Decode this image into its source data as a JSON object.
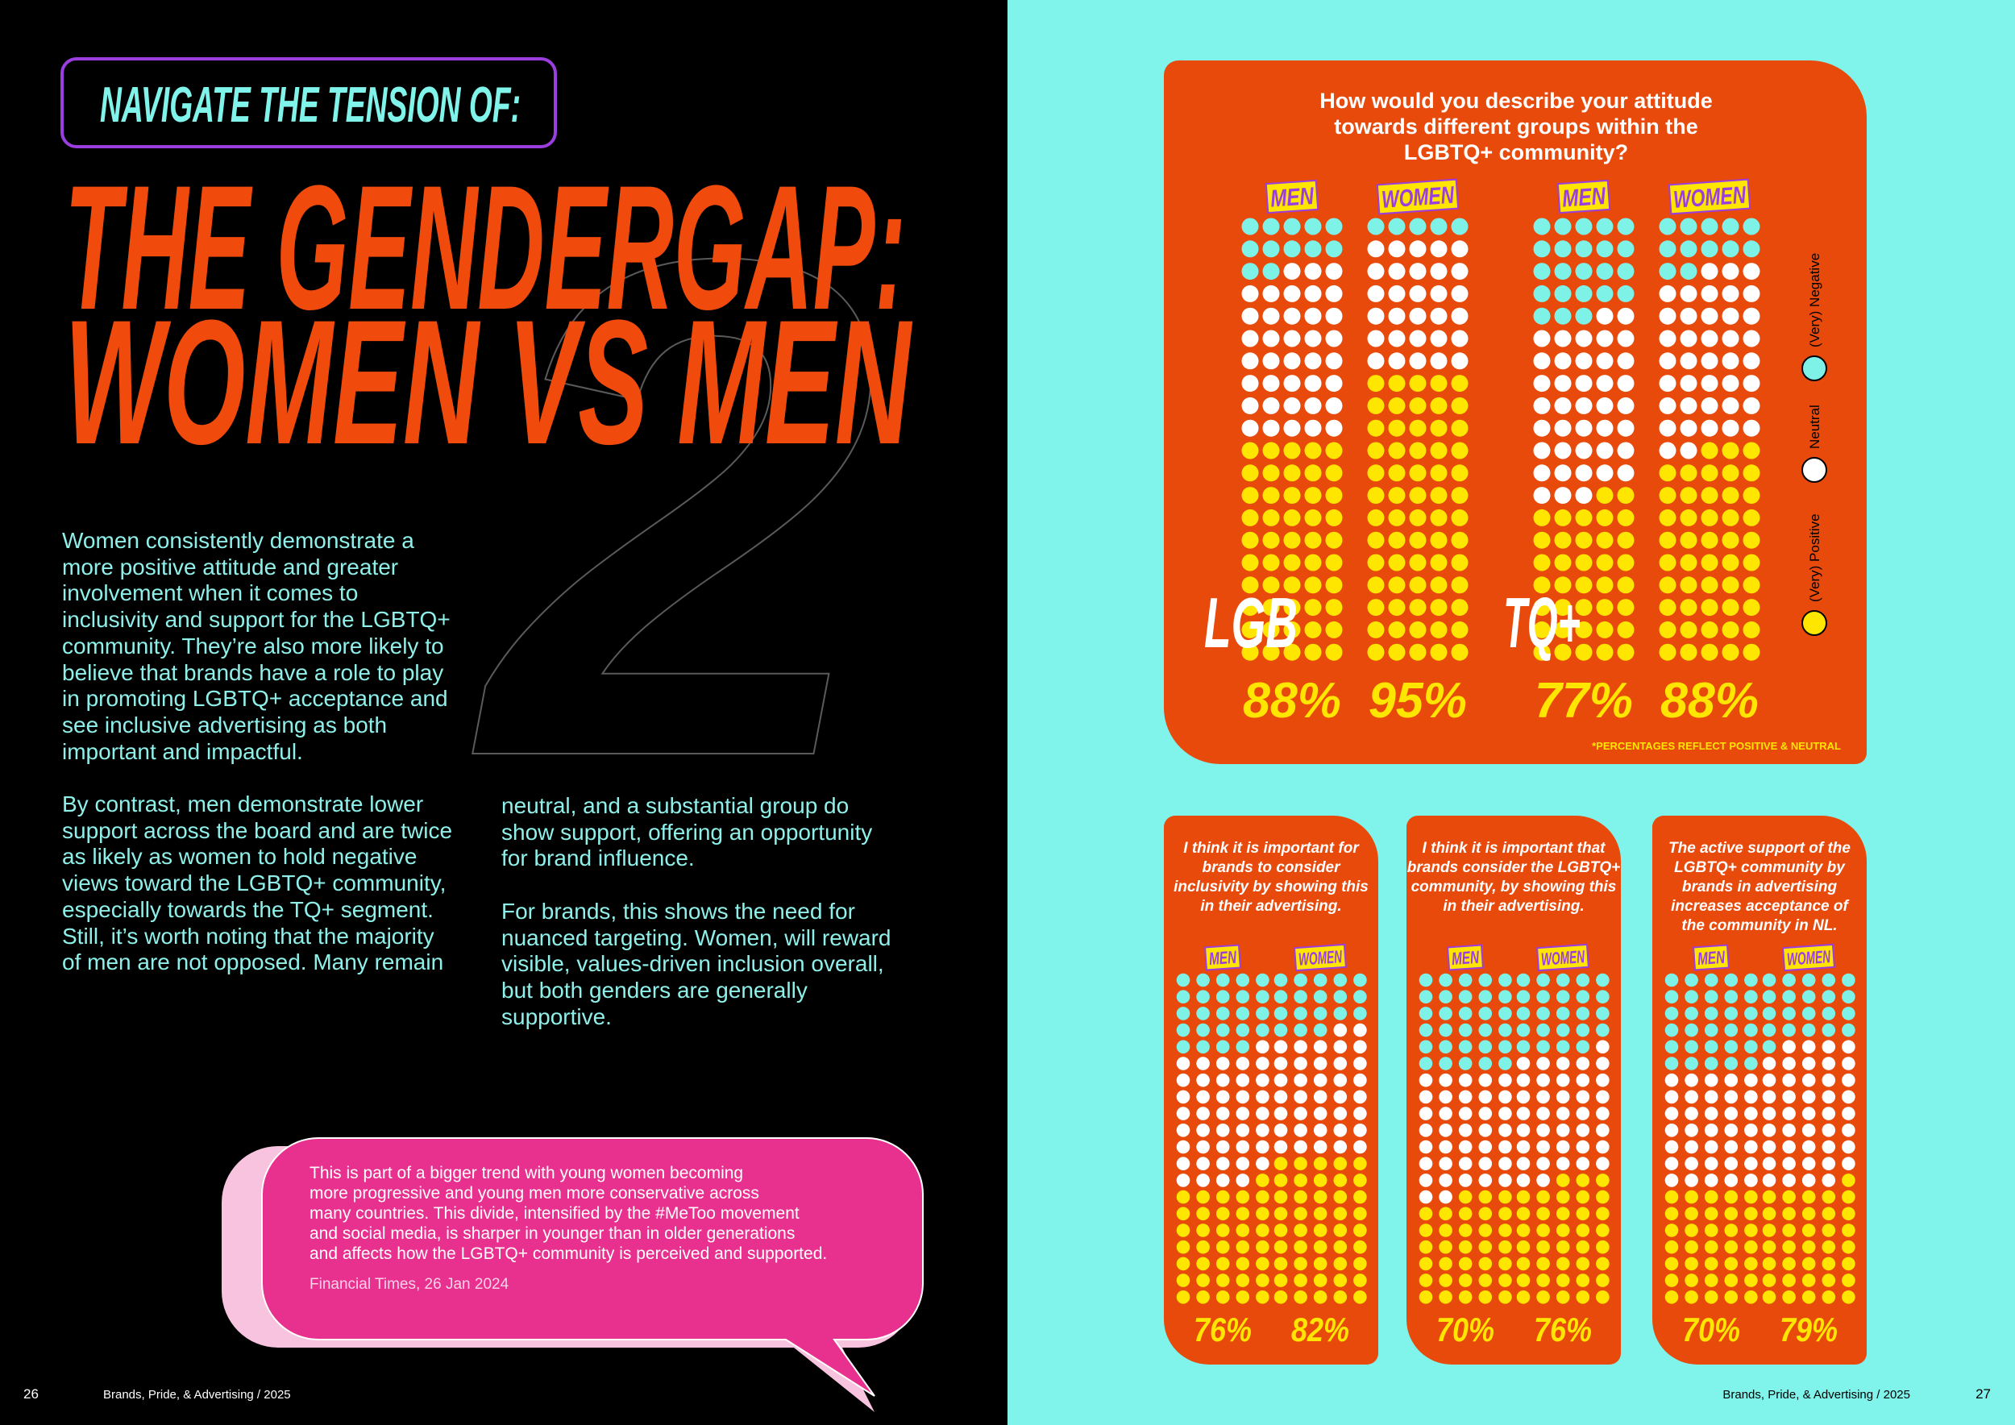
{
  "left": {
    "tag": "NAVIGATE THE TENSION OF:",
    "title": [
      "THE GENDERGAP:",
      "WOMEN VS MEN"
    ],
    "chapter_number": "2",
    "column_1": [
      "Women consistently demonstrate a more positive attitude and greater involvement when it comes to inclusivity and support for the LGBTQ+ community. They’re also more likely to believe that brands have a role to play in promoting LGBTQ+ acceptance and see inclusive advertising as both important and impactful.",
      "By contrast, men demonstrate lower support across the board and are twice as likely as women to hold negative views toward the LGBTQ+ community, especially towards the TQ+ segment. Still, it’s worth noting that the majority of men are not opposed. Many remain"
    ],
    "column_2": [
      "neutral, and a substantial group do show support, offering an opportunity for brand influence.",
      "For brands, this shows the need for nuanced targeting. Women, will reward visible, values-driven inclusion overall, but both genders are generally supportive."
    ],
    "quote": {
      "lines": [
        "This is part of a bigger trend with young women becoming",
        "more progressive and young men more conservative across",
        "many countries. This divide, intensified by the #MeToo movement",
        "and social media, is sharper in younger than in older generations",
        "and affects how the LGBTQ+ community is perceived and supported."
      ],
      "source": "Financial Times, 26 Jan 2024"
    },
    "footer": {
      "page": "26",
      "publication": "Brands, Pride, & Advertising / 2025"
    }
  },
  "right": {
    "main_chart": {
      "title": [
        "How would you describe your attitude",
        "towards different groups within the",
        "LGBTQ+ community?"
      ],
      "legend": [
        {
          "name": "(Very) Negative",
          "color": "#7ff2e8"
        },
        {
          "name": "Neutral",
          "color": "#ffffff"
        },
        {
          "name": "(Very) Positive",
          "color": "#ffe600"
        }
      ],
      "groups": [
        {
          "label": "LGB",
          "columns": [
            {
              "name": "MEN",
              "values": [
                12,
                38,
                50
              ],
              "value_label": "88%"
            },
            {
              "name": "WOMEN",
              "values": [
                5,
                30,
                65
              ],
              "value_label": "95%"
            }
          ]
        },
        {
          "label": "TQ+",
          "columns": [
            {
              "name": "MEN",
              "values": [
                23,
                40,
                37
              ],
              "value_label": "77%"
            },
            {
              "name": "WOMEN",
              "values": [
                12,
                40,
                48
              ],
              "value_label": "88%"
            }
          ]
        }
      ],
      "note": "*PERCENTAGES REFLECT POSITIVE & NEUTRAL"
    },
    "statement_charts": [
      {
        "title": [
          "I think it is important for",
          "brands to consider",
          "inclusivity by showing this",
          "in their advertising."
        ],
        "columns": [
          {
            "name": "MEN",
            "values": [
              24,
              40,
              36
            ],
            "value_label": "76%"
          },
          {
            "name": "WOMEN",
            "values": [
              18,
              37,
              45
            ],
            "value_label": "82%"
          }
        ]
      },
      {
        "title": [
          "I think it is important that",
          "brands consider the LGBTQ+",
          "community, by showing this",
          "in their advertising."
        ],
        "columns": [
          {
            "name": "MEN",
            "values": [
              30,
              37,
              33
            ],
            "value_label": "70%"
          },
          {
            "name": "WOMEN",
            "values": [
              24,
              38,
              38
            ],
            "value_label": "76%"
          }
        ]
      },
      {
        "title": [
          "The active support of the",
          "LGBTQ+ community by",
          "brands in advertising",
          "increases acceptance of",
          "the community in NL."
        ],
        "columns": [
          {
            "name": "MEN",
            "values": [
              30,
              35,
              35
            ],
            "value_label": "70%"
          },
          {
            "name": "WOMEN",
            "values": [
              21,
              43,
              36
            ],
            "value_label": "79%"
          }
        ]
      }
    ],
    "footer": {
      "page": "27",
      "publication": "Brands, Pride, & Advertising / 2025"
    }
  }
}
